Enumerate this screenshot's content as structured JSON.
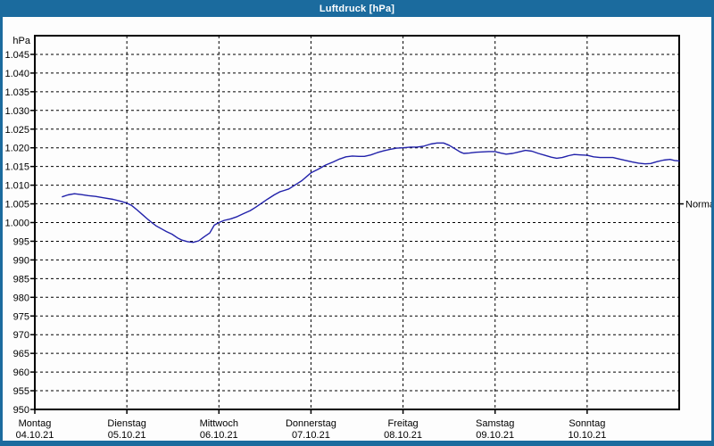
{
  "window": {
    "title": "Luftdruck [hPa]"
  },
  "colors": {
    "frame_blue": "#1B6B9E",
    "title_text": "#FFFFFF",
    "background": "#FDFDFD",
    "grid": "#000000",
    "curve": "#2121AA",
    "text": "#000000"
  },
  "chart_data": {
    "type": "line",
    "title": "Luftdruck [hPa]",
    "grid": "dashed",
    "y_axis": {
      "label": "hPa",
      "min": 950,
      "max": 1050,
      "grid_step": 5,
      "tick_labels": [
        "1.045",
        "1.040",
        "1.035",
        "1.030",
        "1.025",
        "1.020",
        "1.015",
        "1.010",
        "1.005",
        "1.000",
        "995",
        "990",
        "985",
        "980",
        "975",
        "970",
        "965",
        "960",
        "955",
        "950"
      ]
    },
    "x_axis": {
      "total_days": 7,
      "days": [
        {
          "name": "Montag",
          "date": "04.10.21"
        },
        {
          "name": "Dienstag",
          "date": "05.10.21"
        },
        {
          "name": "Mittwoch",
          "date": "06.10.21"
        },
        {
          "name": "Donnerstag",
          "date": "07.10.21"
        },
        {
          "name": "Freitag",
          "date": "08.10.21"
        },
        {
          "name": "Samstag",
          "date": "09.10.21"
        },
        {
          "name": "Sonntag",
          "date": "10.10.21"
        }
      ]
    },
    "reference": {
      "label": "Normal",
      "value": 1005
    },
    "series": [
      {
        "name": "Luftdruck",
        "color": "#2121AA",
        "points": [
          [
            0.3,
            1006.9
          ],
          [
            0.36,
            1007.4
          ],
          [
            0.43,
            1007.7
          ],
          [
            0.5,
            1007.5
          ],
          [
            0.58,
            1007.2
          ],
          [
            0.66,
            1007.0
          ],
          [
            0.75,
            1006.6
          ],
          [
            0.85,
            1006.2
          ],
          [
            0.93,
            1005.7
          ],
          [
            1.0,
            1005.2
          ],
          [
            1.05,
            1004.6
          ],
          [
            1.1,
            1003.6
          ],
          [
            1.17,
            1002.1
          ],
          [
            1.23,
            1000.8
          ],
          [
            1.27,
            1000.0
          ],
          [
            1.32,
            999.1
          ],
          [
            1.37,
            998.4
          ],
          [
            1.43,
            997.6
          ],
          [
            1.49,
            996.9
          ],
          [
            1.55,
            995.9
          ],
          [
            1.6,
            995.3
          ],
          [
            1.66,
            994.9
          ],
          [
            1.72,
            994.7
          ],
          [
            1.78,
            995.1
          ],
          [
            1.84,
            996.2
          ],
          [
            1.9,
            997.2
          ],
          [
            1.95,
            999.3
          ],
          [
            2.0,
            1000.0
          ],
          [
            2.06,
            1000.6
          ],
          [
            2.13,
            1001.0
          ],
          [
            2.2,
            1001.6
          ],
          [
            2.27,
            1002.4
          ],
          [
            2.34,
            1003.2
          ],
          [
            2.4,
            1004.1
          ],
          [
            2.47,
            1005.3
          ],
          [
            2.53,
            1006.3
          ],
          [
            2.6,
            1007.4
          ],
          [
            2.66,
            1008.2
          ],
          [
            2.71,
            1008.6
          ],
          [
            2.76,
            1009.0
          ],
          [
            2.83,
            1010.1
          ],
          [
            2.9,
            1011.2
          ],
          [
            3.0,
            1013.3
          ],
          [
            3.08,
            1014.3
          ],
          [
            3.16,
            1015.4
          ],
          [
            3.24,
            1016.2
          ],
          [
            3.31,
            1017.0
          ],
          [
            3.38,
            1017.6
          ],
          [
            3.45,
            1017.8
          ],
          [
            3.52,
            1017.7
          ],
          [
            3.58,
            1017.7
          ],
          [
            3.65,
            1018.1
          ],
          [
            3.72,
            1018.7
          ],
          [
            3.79,
            1019.2
          ],
          [
            3.86,
            1019.6
          ],
          [
            3.93,
            1019.9
          ],
          [
            4.0,
            1020.0
          ],
          [
            4.08,
            1020.2
          ],
          [
            4.15,
            1020.2
          ],
          [
            4.22,
            1020.4
          ],
          [
            4.3,
            1021.0
          ],
          [
            4.37,
            1021.3
          ],
          [
            4.44,
            1021.3
          ],
          [
            4.5,
            1020.7
          ],
          [
            4.56,
            1019.8
          ],
          [
            4.62,
            1018.9
          ],
          [
            4.66,
            1018.5
          ],
          [
            4.72,
            1018.6
          ],
          [
            4.79,
            1018.8
          ],
          [
            4.86,
            1018.9
          ],
          [
            4.93,
            1019.0
          ],
          [
            5.0,
            1019.0
          ],
          [
            5.06,
            1018.6
          ],
          [
            5.12,
            1018.3
          ],
          [
            5.19,
            1018.5
          ],
          [
            5.26,
            1018.9
          ],
          [
            5.33,
            1019.3
          ],
          [
            5.4,
            1019.1
          ],
          [
            5.47,
            1018.5
          ],
          [
            5.54,
            1018.0
          ],
          [
            5.61,
            1017.5
          ],
          [
            5.67,
            1017.2
          ],
          [
            5.73,
            1017.4
          ],
          [
            5.8,
            1017.9
          ],
          [
            5.86,
            1018.2
          ],
          [
            5.93,
            1018.1
          ],
          [
            6.0,
            1018.0
          ],
          [
            6.07,
            1017.6
          ],
          [
            6.14,
            1017.4
          ],
          [
            6.21,
            1017.4
          ],
          [
            6.28,
            1017.4
          ],
          [
            6.35,
            1017.0
          ],
          [
            6.42,
            1016.6
          ],
          [
            6.49,
            1016.2
          ],
          [
            6.56,
            1015.9
          ],
          [
            6.63,
            1015.7
          ],
          [
            6.69,
            1015.8
          ],
          [
            6.76,
            1016.3
          ],
          [
            6.83,
            1016.7
          ],
          [
            6.9,
            1016.9
          ],
          [
            6.95,
            1016.6
          ],
          [
            7.0,
            1016.5
          ]
        ]
      }
    ]
  }
}
